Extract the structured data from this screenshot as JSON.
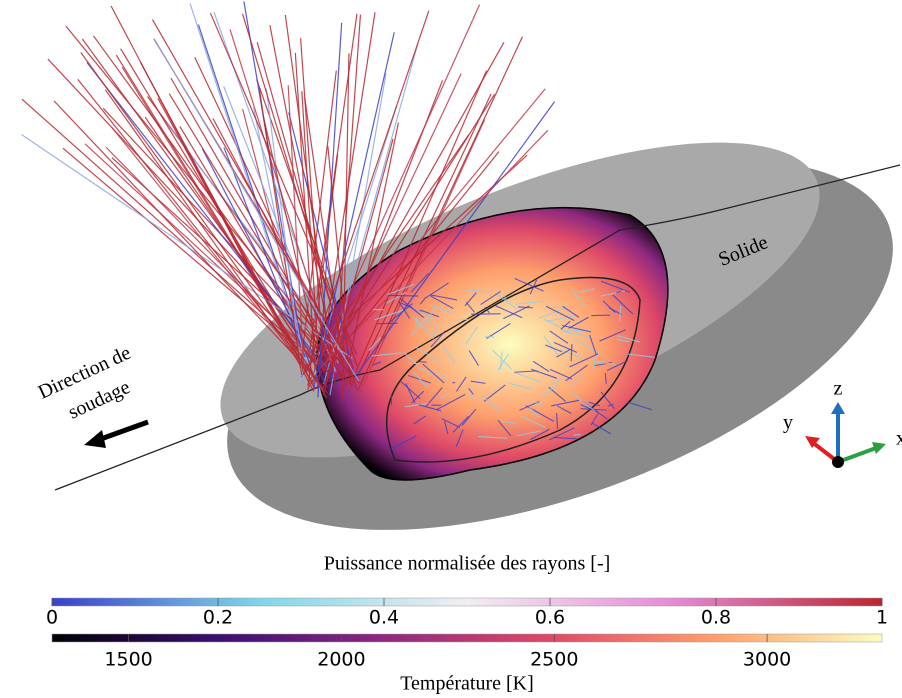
{
  "scene": {
    "solid_label": "Solide",
    "direction_label": [
      "Direction de",
      "soudage"
    ],
    "axes": {
      "x": "x",
      "y": "y",
      "z": "z"
    }
  },
  "colorbars": [
    {
      "title": "Puissance normalisée des rayons [-]",
      "range": [
        0,
        1
      ],
      "ticks": [
        0,
        0.2,
        0.4,
        0.6,
        0.8,
        1
      ],
      "colors": [
        "#3b3fc9",
        "#7fd6e8",
        "#f2eef2",
        "#e58ad6",
        "#b8262f"
      ]
    },
    {
      "title": "Température [K]",
      "range": [
        1320,
        3270
      ],
      "ticks": [
        1500,
        2000,
        2500,
        3000
      ],
      "colors": [
        "#000004",
        "#3b0f70",
        "#8c2981",
        "#de4968",
        "#fe9f6d",
        "#fcfdbf"
      ]
    }
  ]
}
